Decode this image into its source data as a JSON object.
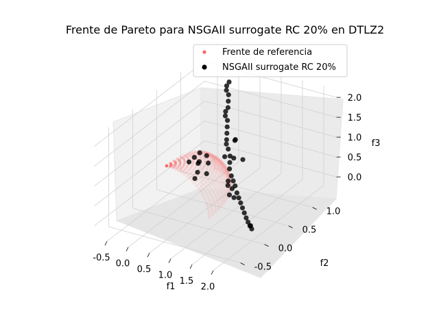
{
  "chart_data": {
    "type": "scatter3d",
    "title": "Frente de Pareto para NSGAII surrogate RC 20% en DTLZ2",
    "xlabel": "f1",
    "ylabel": "f2",
    "zlabel": "f3",
    "xticks": [
      -0.5,
      0.0,
      0.5,
      1.0,
      1.5,
      2.0
    ],
    "yticks": [
      -0.5,
      0.0,
      0.5,
      1.0
    ],
    "zticks": [
      0.0,
      0.5,
      1.0,
      1.5,
      2.0
    ],
    "xlim": [
      -0.8,
      2.3
    ],
    "ylim": [
      -0.8,
      1.5
    ],
    "zlim": [
      -0.3,
      2.2
    ],
    "grid": true,
    "legend_position": "top-right",
    "series": [
      {
        "name": "Frente de referencia",
        "color": "#ff6666",
        "description": "reference front on unit sphere octant"
      },
      {
        "name": "NSGAII surrogate RC 20%",
        "color": "#000000",
        "points": [
          [
            0.0,
            1.3,
            1.9
          ],
          [
            0.0,
            1.25,
            1.85
          ],
          [
            0.05,
            1.2,
            1.8
          ],
          [
            0.1,
            1.2,
            1.7
          ],
          [
            0.15,
            1.15,
            1.6
          ],
          [
            0.2,
            1.1,
            1.5
          ],
          [
            0.2,
            1.05,
            1.45
          ],
          [
            0.25,
            1.0,
            1.4
          ],
          [
            0.3,
            1.0,
            1.3
          ],
          [
            0.35,
            0.95,
            1.2
          ],
          [
            0.4,
            0.9,
            1.1
          ],
          [
            0.45,
            0.85,
            1.0
          ],
          [
            0.5,
            0.8,
            0.95
          ],
          [
            0.6,
            0.75,
            0.9
          ],
          [
            0.7,
            0.7,
            0.8
          ],
          [
            0.75,
            0.65,
            0.7
          ],
          [
            0.8,
            0.6,
            0.6
          ],
          [
            0.9,
            0.55,
            0.5
          ],
          [
            1.0,
            0.5,
            0.45
          ],
          [
            1.1,
            0.45,
            0.4
          ],
          [
            1.2,
            0.4,
            0.3
          ],
          [
            1.3,
            0.35,
            0.25
          ],
          [
            1.4,
            0.3,
            0.2
          ],
          [
            1.5,
            0.25,
            0.15
          ],
          [
            1.6,
            0.2,
            0.1
          ],
          [
            1.7,
            0.15,
            0.05
          ],
          [
            1.8,
            0.1,
            0.02
          ],
          [
            1.9,
            0.05,
            0.0
          ],
          [
            2.0,
            0.0,
            0.0
          ],
          [
            1.95,
            0.02,
            0.05
          ],
          [
            0.3,
            0.2,
            1.0
          ],
          [
            0.4,
            0.3,
            0.9
          ],
          [
            0.5,
            0.2,
            0.8
          ],
          [
            0.6,
            0.3,
            0.7
          ],
          [
            0.55,
            0.1,
            0.75
          ],
          [
            0.2,
            0.4,
            0.9
          ],
          [
            0.1,
            0.6,
            0.8
          ],
          [
            0.2,
            0.5,
            0.7
          ],
          [
            0.3,
            0.6,
            0.6
          ],
          [
            0.15,
            0.7,
            0.65
          ],
          [
            0.9,
            0.6,
            0.9
          ],
          [
            0.8,
            0.5,
            1.0
          ],
          [
            1.0,
            0.7,
            0.8
          ],
          [
            0.7,
            0.8,
            1.1
          ],
          [
            0.6,
            0.9,
            1.0
          ],
          [
            1.2,
            0.3,
            0.5
          ],
          [
            1.25,
            0.2,
            0.45
          ],
          [
            1.3,
            0.25,
            0.35
          ],
          [
            1.1,
            0.3,
            0.55
          ],
          [
            1.05,
            0.35,
            0.6
          ]
        ]
      }
    ]
  }
}
